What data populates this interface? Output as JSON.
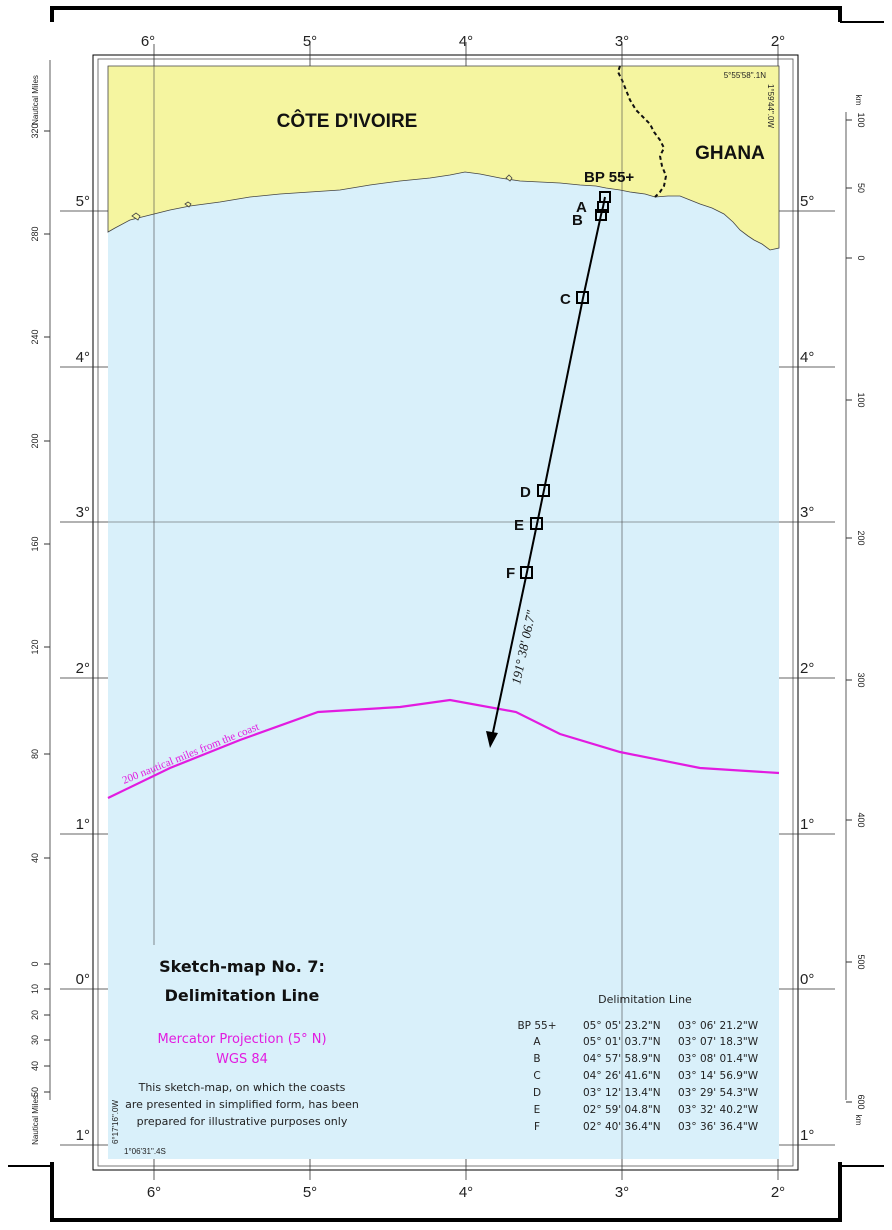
{
  "map": {
    "countries": {
      "cote_divoire": "CÔTE D'IVOIRE",
      "ghana": "GHANA"
    },
    "longitude_labels": [
      "6°",
      "5°",
      "4°",
      "3°",
      "2°"
    ],
    "latitude_labels": [
      "5°",
      "4°",
      "3°",
      "2°",
      "1°",
      "0°",
      "1°"
    ],
    "corner_coords": {
      "top_right_lat": "5°55'58\".1N",
      "top_right_lon": "1°59'44\".0W",
      "bottom_left_lon": "6°17'16\".0W",
      "bottom_left_lat": "1°06'31\".4S"
    },
    "points": [
      {
        "id": "BP 55+",
        "label": "BP 55+"
      },
      {
        "id": "A",
        "label": "A"
      },
      {
        "id": "B",
        "label": "B"
      },
      {
        "id": "C",
        "label": "C"
      },
      {
        "id": "D",
        "label": "D"
      },
      {
        "id": "E",
        "label": "E"
      },
      {
        "id": "F",
        "label": "F"
      }
    ],
    "bearing_label": "191° 38' 06.7\"",
    "limit_line_label": "200 nautical miles from the coast",
    "colors": {
      "land": "#f5f5a0",
      "sea": "#d9f0fa",
      "limit_line": "#e21be0",
      "frame": "#000000"
    }
  },
  "scales": {
    "nautical_miles": {
      "title": "Nautical Miles",
      "ticks": [
        "320",
        "280",
        "240",
        "200",
        "160",
        "120",
        "80",
        "40",
        "0",
        "10",
        "20",
        "30",
        "40",
        "50"
      ]
    },
    "km": {
      "unit": "km",
      "ticks": [
        "100",
        "50",
        "0",
        "100",
        "200",
        "300",
        "400",
        "500",
        "600"
      ]
    }
  },
  "legend": {
    "title_line1": "Sketch-map No. 7:",
    "title_line2": "Delimitation Line",
    "projection_line1": "Mercator Projection (5° N)",
    "projection_line2": "WGS 84",
    "disclaimer": [
      "This sketch-map, on which the coasts",
      "are presented in simplified form, has been",
      "prepared for illustrative purposes only"
    ]
  },
  "coordinates_table": {
    "title": "Delimitation Line",
    "rows": [
      {
        "point": "BP 55+",
        "lat": "05° 05' 23.2\"N",
        "lon": "03° 06' 21.2\"W"
      },
      {
        "point": "A",
        "lat": "05° 01' 03.7\"N",
        "lon": "03° 07' 18.3\"W"
      },
      {
        "point": "B",
        "lat": "04° 57' 58.9\"N",
        "lon": "03° 08' 01.4\"W"
      },
      {
        "point": "C",
        "lat": "04° 26' 41.6\"N",
        "lon": "03° 14' 56.9\"W"
      },
      {
        "point": "D",
        "lat": "03° 12' 13.4\"N",
        "lon": "03° 29' 54.3\"W"
      },
      {
        "point": "E",
        "lat": "02° 59' 04.8\"N",
        "lon": "03° 32' 40.2\"W"
      },
      {
        "point": "F",
        "lat": "02° 40' 36.4\"N",
        "lon": "03° 36' 36.4\"W"
      }
    ]
  }
}
